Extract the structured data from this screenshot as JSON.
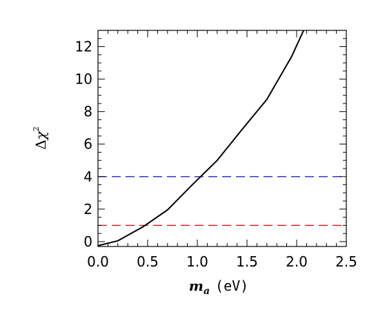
{
  "chart_data": {
    "type": "line",
    "title": "",
    "xlabel": "m_a (eV)",
    "ylabel": "Δχ²",
    "xlim": [
      0.0,
      2.5
    ],
    "ylim": [
      -0.3,
      13.0
    ],
    "grid": false,
    "x_ticks": [
      0.0,
      0.5,
      1.0,
      1.5,
      2.0,
      2.5
    ],
    "x_tick_labels": [
      "0.0",
      "0.5",
      "1.0",
      "1.5",
      "2.0",
      "2.5"
    ],
    "y_ticks": [
      0,
      2,
      4,
      6,
      8,
      10,
      12
    ],
    "y_tick_labels": [
      "0",
      "2",
      "4",
      "6",
      "8",
      "10",
      "12"
    ],
    "series": [
      {
        "style": "solid",
        "color": "#000000",
        "x": [
          0.0,
          0.2,
          0.45,
          0.7,
          0.95,
          1.2,
          1.45,
          1.7,
          1.95,
          2.07
        ],
        "y": [
          -0.25,
          0.05,
          0.9,
          1.95,
          3.5,
          5.0,
          6.9,
          8.75,
          11.4,
          13.0
        ]
      }
    ],
    "hlines": [
      {
        "y": 4.0,
        "color": "#2222cc",
        "style": "dashed"
      },
      {
        "y": 1.0,
        "color": "#dd1111",
        "style": "dashed"
      }
    ],
    "label_parts": {
      "x_symbol": "m",
      "x_subscript": "a",
      "x_unit": "(eV)",
      "y_delta": "Δ",
      "y_chi": "χ",
      "y_power": "2"
    }
  }
}
